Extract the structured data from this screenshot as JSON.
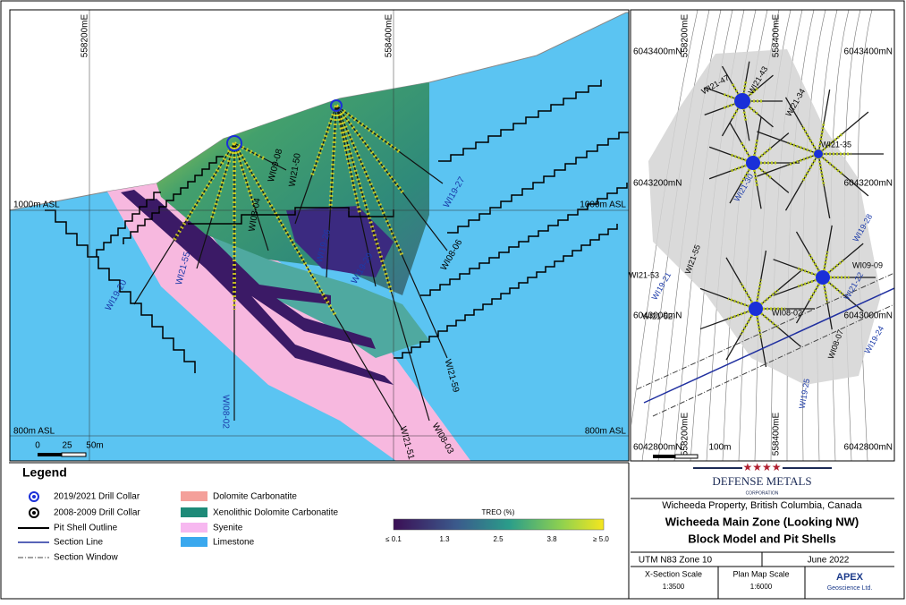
{
  "section": {
    "eastings": [
      "558200mE",
      "558400mE"
    ],
    "elevations": [
      "1000m ASL",
      "1000m ASL",
      "800m ASL",
      "800m ASL"
    ],
    "scale": [
      "0",
      "25",
      "50m"
    ],
    "holes": [
      "WI19-20",
      "WI21-55",
      "WI08-02",
      "WI19-27",
      "WI19-26",
      "WI19-29",
      "WI08-06",
      "WI21-59",
      "WI21-51",
      "WI08-03",
      "WI08-04",
      "WI09-08",
      "WI21-50"
    ]
  },
  "plan": {
    "northings": [
      "6043400mN",
      "6043400mN",
      "6043200mN",
      "6043200mN",
      "6043000mN",
      "6043000mN",
      "6042800mN",
      "6042800mN"
    ],
    "eastings": [
      "558200mE",
      "558400mE",
      "558200mE",
      "558400mE"
    ],
    "scale": "100m",
    "holes": [
      "WI21-47",
      "WI21-43",
      "WI21-34",
      "WI21-35",
      "WI21-30",
      "WI19-28",
      "WI21-22",
      "WI19-24",
      "WI19-25",
      "WI08-02",
      "WI09-09",
      "WI08-07",
      "WI21-52",
      "WI21-53",
      "WI21-55",
      "WI19-21"
    ]
  },
  "legend": {
    "title": "Legend",
    "items": [
      "2019/2021 Drill Collar",
      "2008-2009 Drill Collar",
      "Pit Shell Outline",
      "Section Line",
      "Section Window",
      "Dolomite Carbonatite",
      "Xenolithic Dolomite Carbonatite",
      "Syenite",
      "Limestone"
    ],
    "colorbar": {
      "title": "TREO (%)",
      "labels": [
        "≤ 0.1",
        "1.3",
        "2.5",
        "3.8",
        "≥ 5.0"
      ]
    }
  },
  "titleblock": {
    "company": "DEFENSE METALS",
    "company_sub": "CORPORATION",
    "property": "Wicheeda Property, British Columbia, Canada",
    "title1": "Wicheeda Main Zone (Looking NW)",
    "title2": "Block Model and Pit Shells",
    "projection": "UTM N83 Zone 10",
    "date": "June 2022",
    "xscale_label": "X-Section Scale",
    "xscale": "1:3500",
    "pscale_label": "Plan Map Scale",
    "pscale": "1:6000",
    "apex": "APEX",
    "apex_sub": "Geoscience Ltd."
  }
}
